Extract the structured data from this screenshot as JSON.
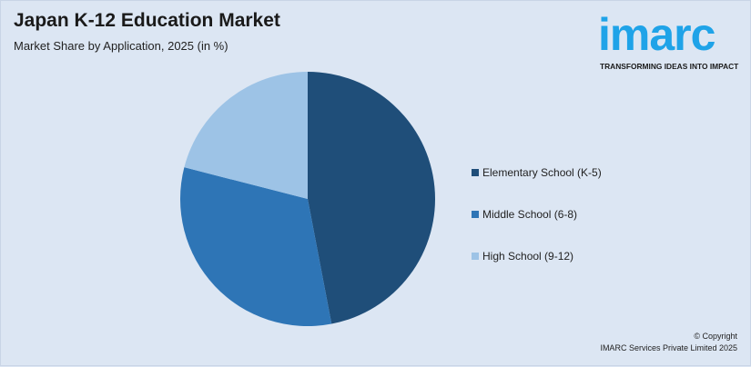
{
  "header": {
    "title": "Japan K-12 Education Market",
    "subtitle": "Market Share by Application, 2025 (in %)"
  },
  "logo": {
    "word": "imarc",
    "tagline": "TRANSFORMING IDEAS INTO IMPACT",
    "color": "#1fa3e8"
  },
  "chart_data": {
    "type": "pie",
    "title": "Japan K-12 Education Market",
    "subtitle": "Market Share by Application, 2025 (in %)",
    "categories": [
      "Elementary School (K-5)",
      "Middle School (6-8)",
      "High School (9-12)"
    ],
    "values": [
      47,
      32,
      21
    ],
    "colors": [
      "#1f4e79",
      "#2e75b6",
      "#9dc3e6"
    ],
    "start_angle": "top, clockwise",
    "legend_placement": "right"
  },
  "footer": {
    "copyright": "© Copyright",
    "company": "IMARC Services Private Limited 2025"
  }
}
